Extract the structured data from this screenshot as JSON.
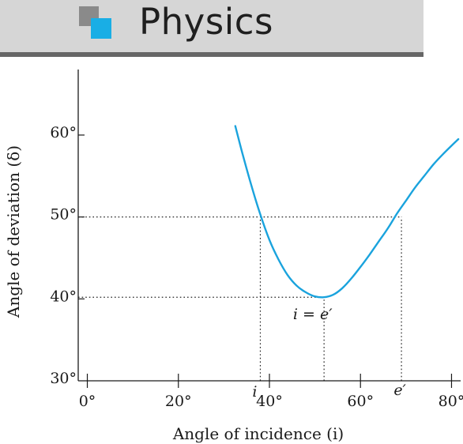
{
  "header": {
    "title": "Physics",
    "logo_colors": {
      "back": "#8a8a8a",
      "front": "#19aee5"
    },
    "bar_color": "#d6d6d6",
    "rule_color": "#666666"
  },
  "chart_data": {
    "type": "line",
    "title": "",
    "xlabel": "Angle of incidence   (i)",
    "ylabel": "Angle of deviation  (δ)",
    "xlim": [
      -2,
      82
    ],
    "ylim": [
      30,
      68
    ],
    "x_ticks": [
      {
        "value": 0,
        "label": "0°"
      },
      {
        "value": 20,
        "label": "20°"
      },
      {
        "value": 40,
        "label": "40°"
      },
      {
        "value": 60,
        "label": "60°"
      },
      {
        "value": 80,
        "label": "80°"
      }
    ],
    "y_ticks": [
      {
        "value": 30,
        "label": "30°"
      },
      {
        "value": 40,
        "label": "40°"
      },
      {
        "value": 50,
        "label": "50°"
      },
      {
        "value": 60,
        "label": "60°"
      }
    ],
    "series": [
      {
        "color": "#1aa3dd",
        "points": [
          [
            32.5,
            61.1
          ],
          [
            34,
            57.9
          ],
          [
            36,
            53.9
          ],
          [
            38,
            50.3
          ],
          [
            40,
            47.2
          ],
          [
            42,
            44.8
          ],
          [
            44,
            42.9
          ],
          [
            46,
            41.6
          ],
          [
            48,
            40.8
          ],
          [
            50,
            40.3
          ],
          [
            52,
            40.2
          ],
          [
            54,
            40.5
          ],
          [
            56,
            41.3
          ],
          [
            58,
            42.5
          ],
          [
            60,
            43.9
          ],
          [
            62,
            45.4
          ],
          [
            64,
            47.0
          ],
          [
            66,
            48.6
          ],
          [
            68,
            50.4
          ],
          [
            70,
            52.0
          ],
          [
            72,
            53.6
          ],
          [
            74,
            55.0
          ],
          [
            76,
            56.4
          ],
          [
            78,
            57.6
          ],
          [
            80,
            58.7
          ],
          [
            81.5,
            59.5
          ]
        ]
      }
    ],
    "guides": [
      {
        "type": "horizontal",
        "y": 50,
        "x_start": -2,
        "x_end": 69
      },
      {
        "type": "horizontal",
        "y": 40.2,
        "x_start": -2,
        "x_end": 52
      },
      {
        "type": "vertical",
        "x": 38,
        "y_start": 30,
        "y_end": 50
      },
      {
        "type": "vertical",
        "x": 52,
        "y_start": 30,
        "y_end": 40.2
      },
      {
        "type": "vertical",
        "x": 69,
        "y_start": 30,
        "y_end": 50
      }
    ],
    "annotations": [
      {
        "text": "i",
        "x": 38,
        "y": 30,
        "anchor": "below-left"
      },
      {
        "text": "i = e′",
        "x": 49.5,
        "y": 40.2,
        "anchor": "below"
      },
      {
        "text": "e′",
        "x": 69,
        "y": 30,
        "anchor": "below-right"
      }
    ],
    "grid": false,
    "legend": "none"
  }
}
